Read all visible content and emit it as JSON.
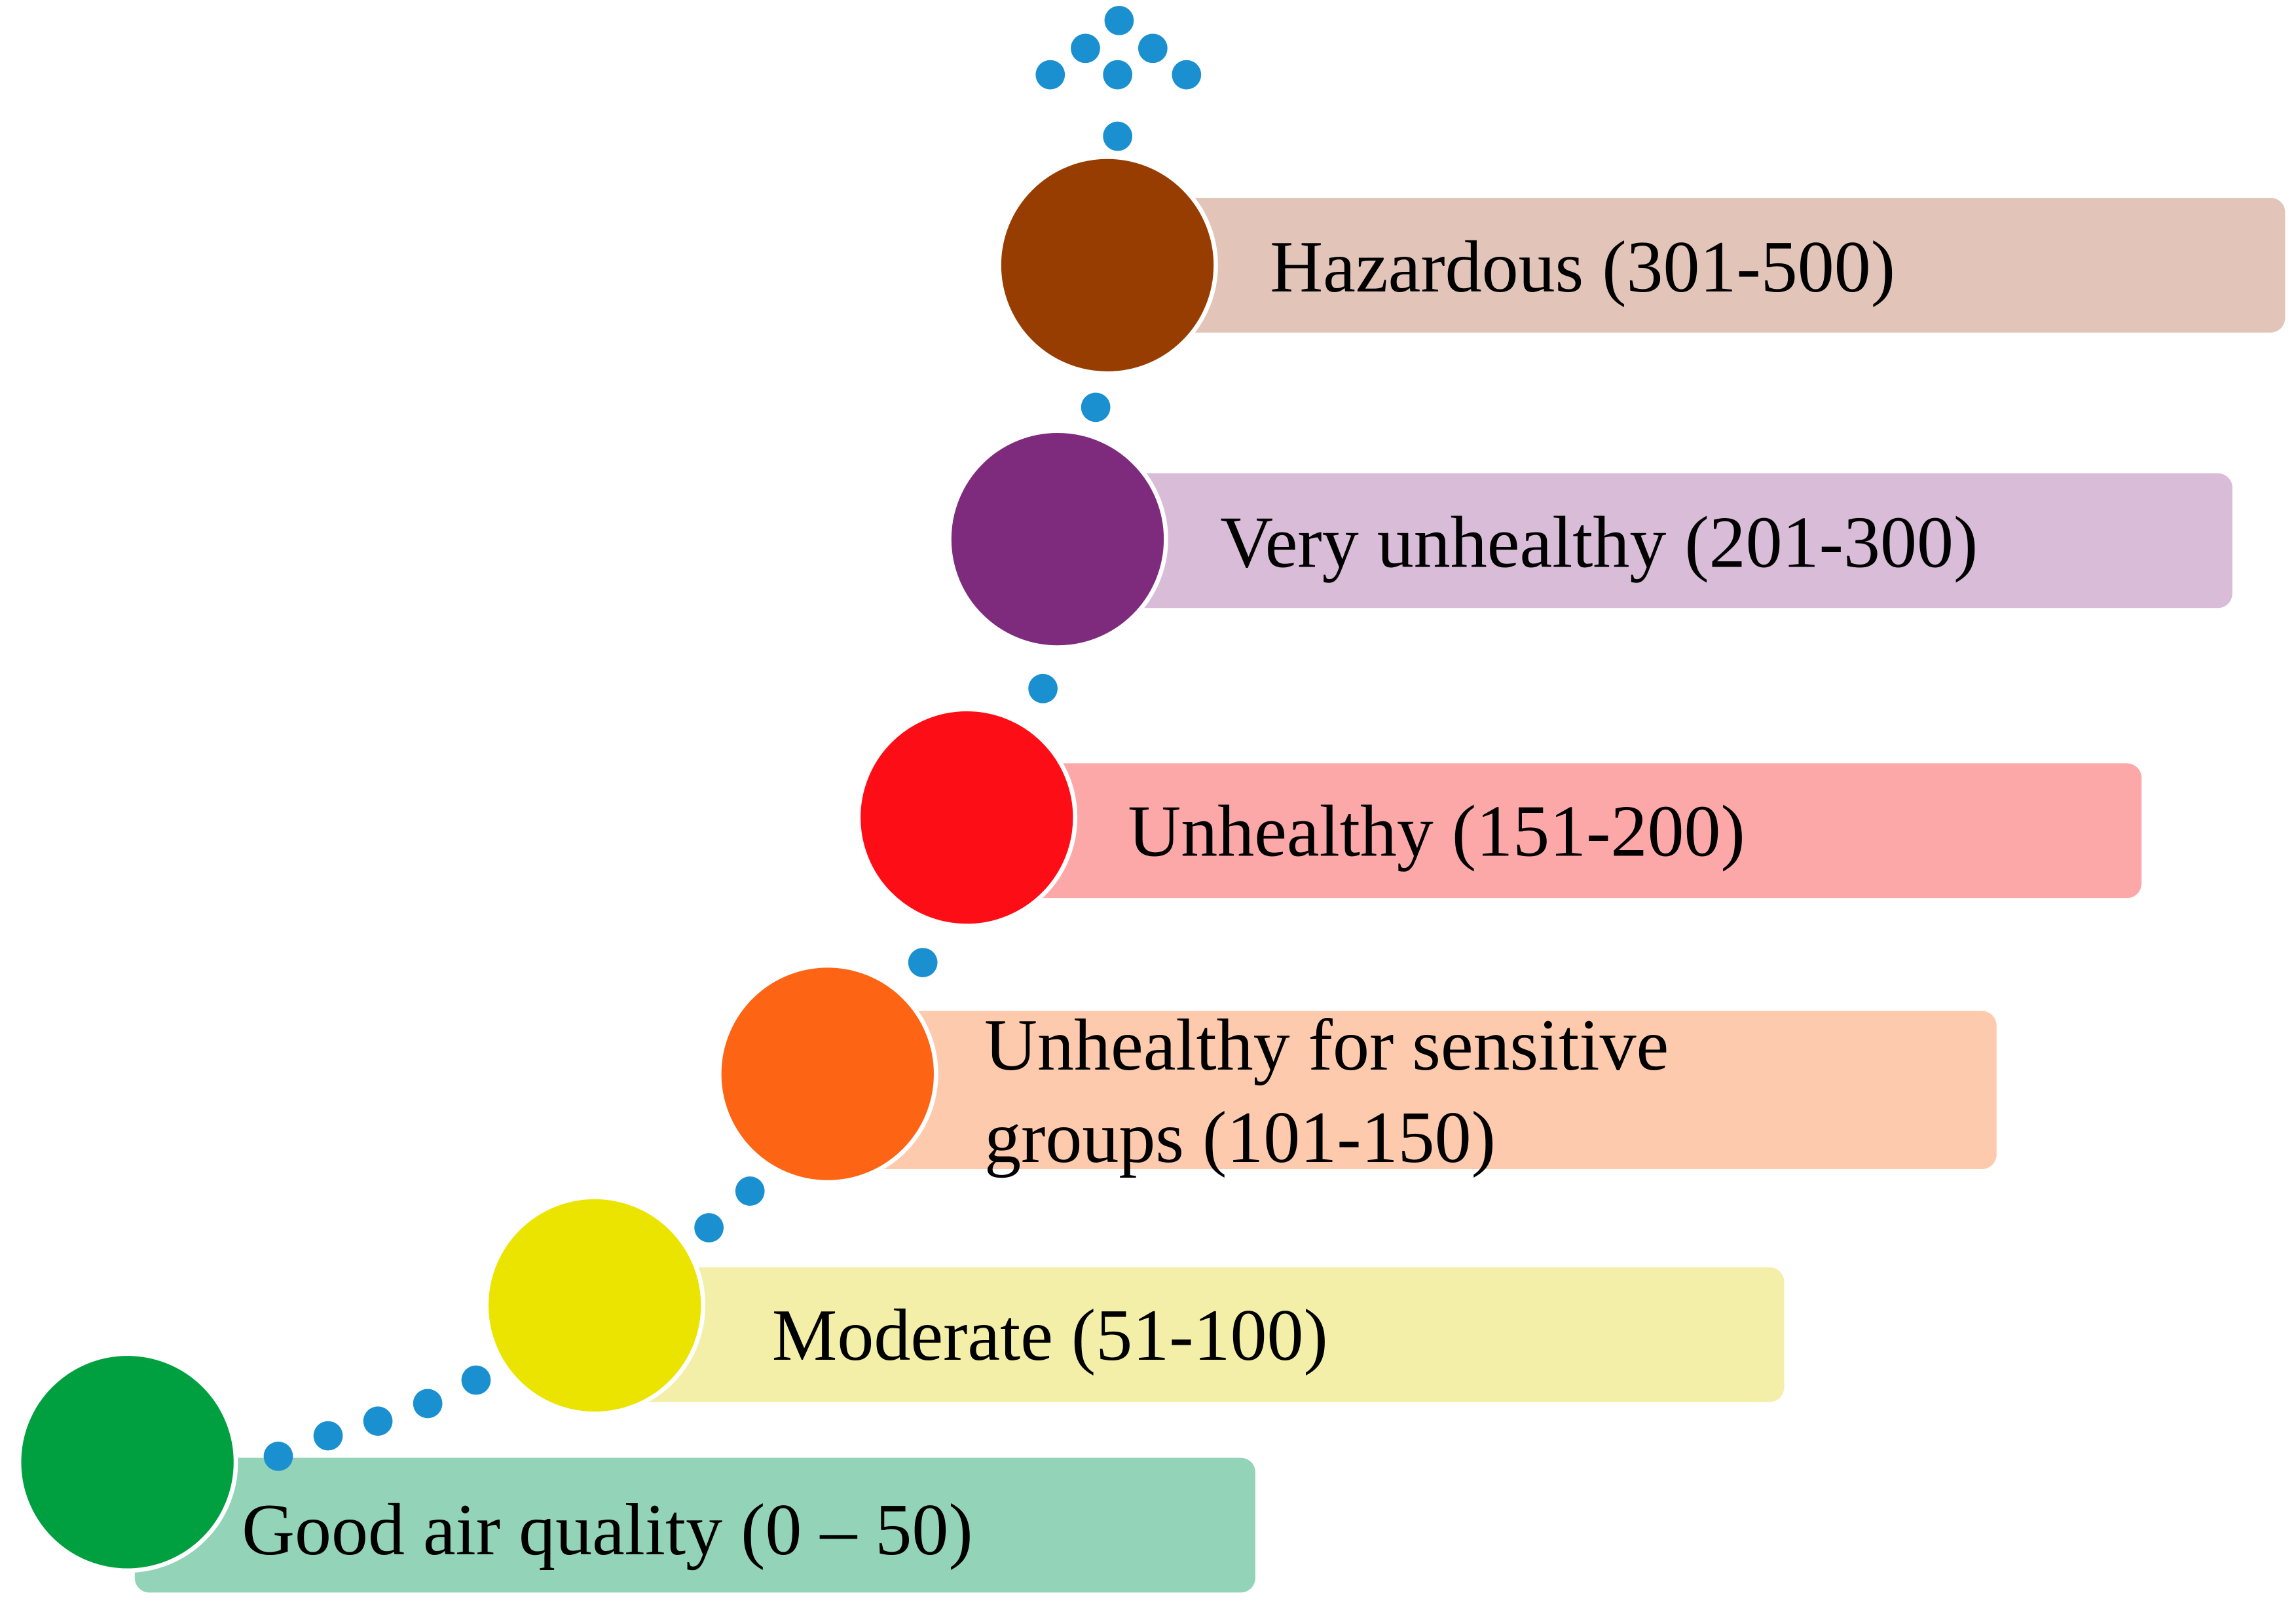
{
  "levels": [
    {
      "label_lines": [
        "Good air quality (0 – 50)"
      ],
      "circle_color": "#00a040",
      "bar_color": "#93d3b8"
    },
    {
      "label_lines": [
        "Moderate (51-100)"
      ],
      "circle_color": "#ebe400",
      "bar_color": "#f3efa8"
    },
    {
      "label_lines": [
        "Unhealthy for sensitive",
        "groups (101-150)"
      ],
      "circle_color": "#fd6414",
      "bar_color": "#fecaad"
    },
    {
      "label_lines": [
        "Unhealthy (151-200)"
      ],
      "circle_color": "#fd0e16",
      "bar_color": "#fca8a9"
    },
    {
      "label_lines": [
        "Very unhealthy (201-300)"
      ],
      "circle_color": "#7e2b7e",
      "bar_color": "#d8bcd8"
    },
    {
      "label_lines": [
        "Hazardous (301-500)"
      ],
      "circle_color": "#983d01",
      "bar_color": "#e2c4b8"
    }
  ],
  "dot_color": "#1a90d0"
}
